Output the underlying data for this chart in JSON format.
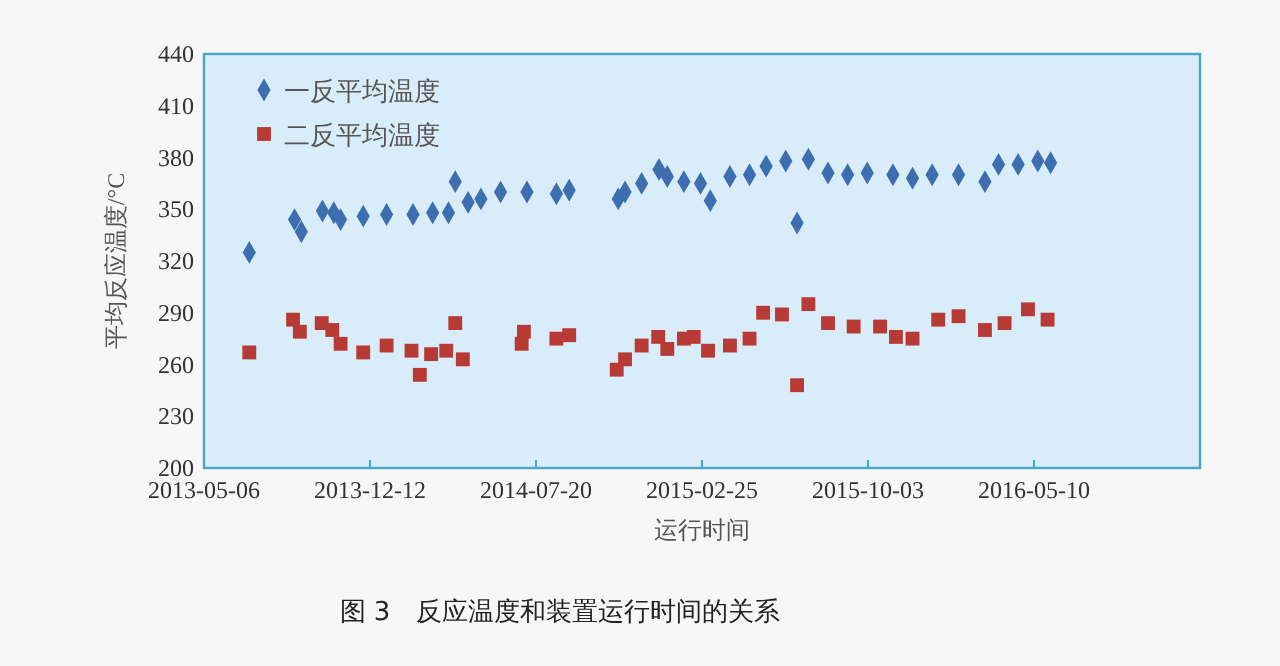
{
  "chart_data": {
    "type": "scatter",
    "xlabel": "运行时间",
    "ylabel": "平均反应温度/°C",
    "xlim": [
      "2013-05-06",
      "2016-12-16"
    ],
    "xticks": [
      "2013-05-06",
      "2013-12-12",
      "2014-07-20",
      "2015-02-25",
      "2015-10-03",
      "2016-05-10"
    ],
    "ylim": [
      200,
      440
    ],
    "yticks": [
      200,
      230,
      260,
      290,
      320,
      350,
      380,
      410,
      440
    ],
    "grid": false,
    "legend": "top left",
    "annotations": [
      "图 3　反应温度和装置运行时间的关系"
    ],
    "series": [
      {
        "name": "一反平均温度",
        "color": "#3d6fb0",
        "marker": "diamond",
        "x": [
          "2013-07-05",
          "2013-09-03",
          "2013-09-12",
          "2013-10-10",
          "2013-10-25",
          "2013-11-03",
          "2013-12-03",
          "2014-01-03",
          "2014-02-07",
          "2014-03-05",
          "2014-03-26",
          "2014-04-04",
          "2014-04-21",
          "2014-05-08",
          "2014-06-03",
          "2014-07-08",
          "2014-08-16",
          "2014-09-02",
          "2014-11-06",
          "2014-11-15",
          "2014-12-07",
          "2014-12-30",
          "2015-01-10",
          "2015-02-01",
          "2015-02-23",
          "2015-03-08",
          "2015-04-03",
          "2015-04-29",
          "2015-05-21",
          "2015-06-16",
          "2015-07-01",
          "2015-07-16",
          "2015-08-11",
          "2015-09-06",
          "2015-10-02",
          "2015-11-05",
          "2015-12-01",
          "2015-12-27",
          "2016-01-31",
          "2016-03-06",
          "2016-03-24",
          "2016-04-19",
          "2016-05-15",
          "2016-06-01"
        ],
        "values": [
          325,
          344,
          337,
          349,
          348,
          344,
          346,
          347,
          347,
          348,
          348,
          366,
          354,
          356,
          360,
          360,
          359,
          361,
          356,
          360,
          365,
          373,
          369,
          366,
          365,
          355,
          369,
          370,
          375,
          378,
          342,
          379,
          371,
          370,
          371,
          370,
          368,
          370,
          370,
          366,
          376,
          376,
          378,
          377
        ]
      },
      {
        "name": "二反平均温度",
        "color": "#b83a35",
        "marker": "square",
        "x": [
          "2013-07-05",
          "2013-09-01",
          "2013-09-10",
          "2013-10-09",
          "2013-10-23",
          "2013-11-03",
          "2013-12-03",
          "2014-01-03",
          "2014-02-05",
          "2014-02-16",
          "2014-03-03",
          "2014-03-23",
          "2014-04-04",
          "2014-04-14",
          "2014-07-01",
          "2014-07-04",
          "2014-08-16",
          "2014-09-02",
          "2014-11-04",
          "2014-11-15",
          "2014-12-07",
          "2014-12-29",
          "2015-01-10",
          "2015-02-01",
          "2015-02-14",
          "2015-03-05",
          "2015-04-03",
          "2015-04-29",
          "2015-05-17",
          "2015-06-11",
          "2015-07-01",
          "2015-07-16",
          "2015-08-11",
          "2015-09-14",
          "2015-10-19",
          "2015-11-09",
          "2015-12-01",
          "2016-01-04",
          "2016-01-31",
          "2016-03-06",
          "2016-04-01",
          "2016-05-02",
          "2016-05-28"
        ],
        "values": [
          267,
          286,
          279,
          284,
          280,
          272,
          267,
          271,
          268,
          254,
          266,
          268,
          284,
          263,
          272,
          279,
          275,
          277,
          257,
          263,
          271,
          276,
          269,
          275,
          276,
          268,
          271,
          275,
          290,
          289,
          248,
          295,
          284,
          282,
          282,
          276,
          275,
          286,
          288,
          280,
          284,
          292,
          286
        ]
      }
    ]
  }
}
